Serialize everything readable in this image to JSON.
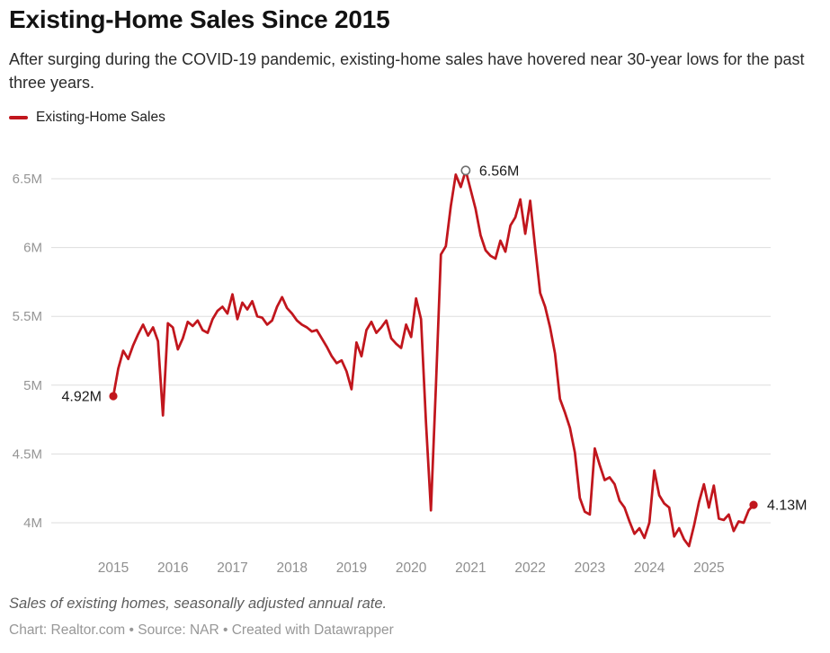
{
  "header": {
    "title": "Existing-Home Sales Since 2015",
    "subtitle": "After surging during the COVID-19 pandemic, existing-home sales have hovered near 30-year lows for the past three years."
  },
  "legend": {
    "items": [
      {
        "label": "Existing-Home Sales",
        "color": "#c1161d"
      }
    ]
  },
  "chart_data": {
    "type": "line",
    "title": "Existing-Home Sales Since 2015",
    "xlabel": "",
    "ylabel": "",
    "unit": "M (millions, seasonally adjusted annual rate)",
    "frequency": "monthly",
    "x_start": "2015-01",
    "x_end": "2025-10",
    "grid": "horizontal",
    "legend_position": "top-left",
    "ylim": [
      4.0,
      6.5
    ],
    "x_tick_labels": [
      "2015",
      "2016",
      "2017",
      "2018",
      "2019",
      "2020",
      "2021",
      "2022",
      "2023",
      "2024",
      "2025"
    ],
    "y_ticks": [
      {
        "label": "6.5M",
        "value": 6.5
      },
      {
        "label": "6M",
        "value": 6.0
      },
      {
        "label": "5.5M",
        "value": 5.5
      },
      {
        "label": "5M",
        "value": 5.0
      },
      {
        "label": "4.5M",
        "value": 4.5
      },
      {
        "label": "4M",
        "value": 4.0
      }
    ],
    "series": [
      {
        "name": "Existing-Home Sales",
        "color": "#c1161d",
        "values": [
          4.92,
          5.12,
          5.25,
          5.19,
          5.29,
          5.37,
          5.44,
          5.36,
          5.42,
          5.32,
          4.78,
          5.45,
          5.42,
          5.26,
          5.34,
          5.46,
          5.43,
          5.47,
          5.4,
          5.38,
          5.48,
          5.54,
          5.57,
          5.52,
          5.66,
          5.48,
          5.6,
          5.55,
          5.61,
          5.5,
          5.49,
          5.44,
          5.47,
          5.57,
          5.64,
          5.56,
          5.52,
          5.47,
          5.44,
          5.42,
          5.39,
          5.4,
          5.34,
          5.28,
          5.21,
          5.16,
          5.18,
          5.1,
          4.97,
          5.31,
          5.21,
          5.4,
          5.46,
          5.38,
          5.42,
          5.47,
          5.34,
          5.3,
          5.27,
          5.44,
          5.35,
          5.63,
          5.48,
          4.73,
          4.09,
          5.0,
          5.95,
          6.01,
          6.3,
          6.53,
          6.44,
          6.56,
          6.42,
          6.28,
          6.09,
          5.98,
          5.94,
          5.92,
          6.05,
          5.97,
          6.16,
          6.22,
          6.35,
          6.1,
          6.34,
          6.0,
          5.67,
          5.57,
          5.42,
          5.23,
          4.9,
          4.8,
          4.69,
          4.51,
          4.18,
          4.08,
          4.06,
          4.54,
          4.42,
          4.31,
          4.33,
          4.28,
          4.16,
          4.11,
          4.01,
          3.92,
          3.96,
          3.89,
          4.0,
          4.38,
          4.2,
          4.14,
          4.11,
          3.9,
          3.96,
          3.88,
          3.83,
          3.98,
          4.15,
          4.28,
          4.11,
          4.27,
          4.03,
          4.02,
          4.06,
          3.94,
          4.01,
          4.0,
          4.09,
          4.13
        ]
      }
    ],
    "annotations": [
      {
        "name": "start-point",
        "index": 0,
        "label": "4.92M",
        "marker": "filled-dot",
        "label_side": "left"
      },
      {
        "name": "peak-point",
        "index": 71,
        "label": "6.56M",
        "marker": "open-circle",
        "label_side": "right"
      },
      {
        "name": "end-point",
        "index": 129,
        "label": "4.13M",
        "marker": "filled-dot",
        "label_side": "right"
      }
    ]
  },
  "footer": {
    "note": "Sales of existing homes, seasonally adjusted annual rate.",
    "credit": "Chart: Realtor.com • Source: NAR • Created with Datawrapper"
  },
  "colors": {
    "line": "#c1161d",
    "grid": "#dddddd",
    "axis_text": "#959595",
    "annotation_text": "#1a1a1a",
    "open_circle_stroke": "#707070",
    "background": "#ffffff"
  }
}
